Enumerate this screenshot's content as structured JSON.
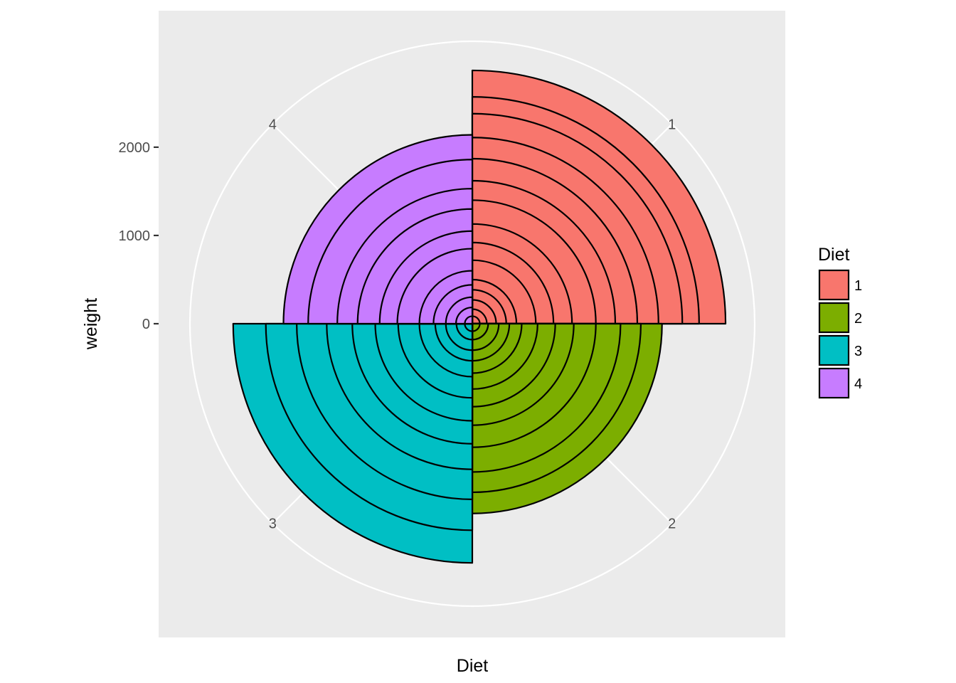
{
  "chart_data": {
    "type": "bar",
    "subtype": "stacked bar in polar coordinates (rose / coxcomb)",
    "title": "",
    "xlabel": "Diet",
    "ylabel": "weight",
    "categories": [
      "1",
      "2",
      "3",
      "4"
    ],
    "y_ticks": [
      0,
      1000,
      2000
    ],
    "ylim": [
      0,
      3200
    ],
    "grid": true,
    "legend": {
      "title": "Diet",
      "position": "right",
      "entries": [
        "1",
        "2",
        "3",
        "4"
      ]
    },
    "series": [
      {
        "category": "1",
        "color": "#F8766D",
        "cumulative_weights": [
          85,
          165,
          270,
          385,
          500,
          720,
          920,
          1130,
          1400,
          1620,
          1870,
          2110,
          2380,
          2570,
          2870
        ]
      },
      {
        "category": "2",
        "color": "#7CAE00",
        "cumulative_weights": [
          85,
          180,
          300,
          420,
          560,
          740,
          940,
          1150,
          1400,
          1680,
          1910,
          2150
        ]
      },
      {
        "category": "3",
        "color": "#00BFC4",
        "cumulative_weights": [
          85,
          180,
          300,
          420,
          600,
          840,
          1100,
          1360,
          1650,
          1990,
          2340,
          2710
        ]
      },
      {
        "category": "4",
        "color": "#C77CFF",
        "cumulative_weights": [
          85,
          185,
          300,
          440,
          600,
          850,
          1050,
          1300,
          1530,
          1860,
          2140
        ]
      }
    ],
    "colors": {
      "panel_background": "#EBEBEB",
      "grid": "#FFFFFF",
      "bar_outline": "#000000"
    }
  }
}
